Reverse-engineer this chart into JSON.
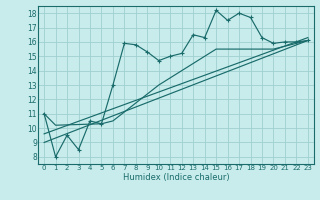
{
  "bg_color": "#c8ecec",
  "grid_color": "#a0d0d0",
  "line_color": "#1a6b6b",
  "xlabel": "Humidex (Indice chaleur)",
  "xlim": [
    -0.5,
    23.5
  ],
  "ylim": [
    7.5,
    18.5
  ],
  "yticks": [
    8,
    9,
    10,
    11,
    12,
    13,
    14,
    15,
    16,
    17,
    18
  ],
  "xticks": [
    0,
    1,
    2,
    3,
    4,
    5,
    6,
    7,
    8,
    9,
    10,
    11,
    12,
    13,
    14,
    15,
    16,
    17,
    18,
    19,
    20,
    21,
    22,
    23
  ],
  "xtick_labels": [
    "0",
    "1",
    "2",
    "3",
    "4",
    "5",
    "6",
    "7",
    "8",
    "9",
    "10",
    "11",
    "12",
    "13",
    "14",
    "15",
    "16",
    "17",
    "18",
    "19",
    "20",
    "21",
    "22",
    "23"
  ],
  "main_line_x": [
    0,
    1,
    2,
    3,
    4,
    5,
    6,
    7,
    8,
    9,
    10,
    11,
    12,
    13,
    14,
    15,
    16,
    17,
    18,
    19,
    20,
    21,
    22,
    23
  ],
  "main_line_y": [
    11,
    8,
    9.5,
    8.5,
    10.5,
    10.3,
    13.0,
    15.9,
    15.8,
    15.3,
    14.7,
    15.0,
    15.2,
    16.5,
    16.3,
    18.2,
    17.5,
    18.0,
    17.7,
    16.3,
    15.9,
    16.0,
    16.0,
    16.1
  ],
  "trend1_x": [
    0,
    23
  ],
  "trend1_y": [
    9.0,
    16.1
  ],
  "trend2_x": [
    0,
    23
  ],
  "trend2_y": [
    9.6,
    16.3
  ],
  "trend3_x": [
    0,
    1,
    5,
    6,
    10,
    15,
    20,
    23
  ],
  "trend3_y": [
    11.0,
    10.2,
    10.3,
    10.5,
    13.0,
    15.5,
    15.5,
    16.1
  ]
}
